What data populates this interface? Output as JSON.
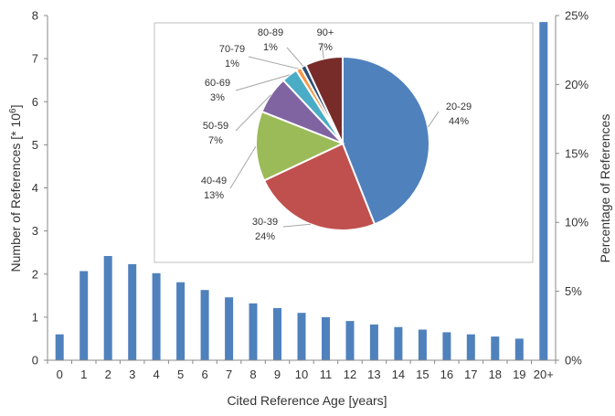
{
  "chart_data": [
    {
      "type": "bar",
      "xlabel": "Cited Reference Age [years]",
      "ylabel_main": "Number of References [* 10",
      "ylabel_exp": "6",
      "ylabel_close": "]",
      "y2label": "Percentage of References",
      "categories": [
        "0",
        "1",
        "2",
        "3",
        "4",
        "5",
        "6",
        "7",
        "8",
        "9",
        "10",
        "11",
        "12",
        "13",
        "14",
        "15",
        "16",
        "17",
        "18",
        "19",
        "20+"
      ],
      "values": [
        0.6,
        2.07,
        2.42,
        2.23,
        2.02,
        1.81,
        1.63,
        1.46,
        1.32,
        1.21,
        1.1,
        1.0,
        0.91,
        0.83,
        0.77,
        0.71,
        0.65,
        0.6,
        0.55,
        0.5,
        7.85
      ],
      "ylim": [
        0,
        8
      ],
      "yticks": [
        "0",
        "1",
        "2",
        "3",
        "4",
        "5",
        "6",
        "7",
        "8"
      ],
      "y2ticks": [
        "0%",
        "5%",
        "10%",
        "15%",
        "20%",
        "25%"
      ],
      "bar_color": "#4F81BD",
      "grid": false
    },
    {
      "type": "pie",
      "slices": [
        {
          "label": "20-29",
          "pct": "44%",
          "value": 44,
          "color": "#4F81BD"
        },
        {
          "label": "30-39",
          "pct": "24%",
          "value": 24,
          "color": "#C0504D"
        },
        {
          "label": "40-49",
          "pct": "13%",
          "value": 13,
          "color": "#9BBB59"
        },
        {
          "label": "50-59",
          "pct": "7%",
          "value": 7,
          "color": "#8064A2"
        },
        {
          "label": "60-69",
          "pct": "3%",
          "value": 3,
          "color": "#4BACC6"
        },
        {
          "label": "70-79",
          "pct": "1%",
          "value": 1,
          "color": "#F79646"
        },
        {
          "label": "80-89",
          "pct": "1%",
          "value": 1,
          "color": "#2C4D75"
        },
        {
          "label": "90+",
          "pct": "7%",
          "value": 7,
          "color": "#772C2A"
        }
      ]
    }
  ]
}
